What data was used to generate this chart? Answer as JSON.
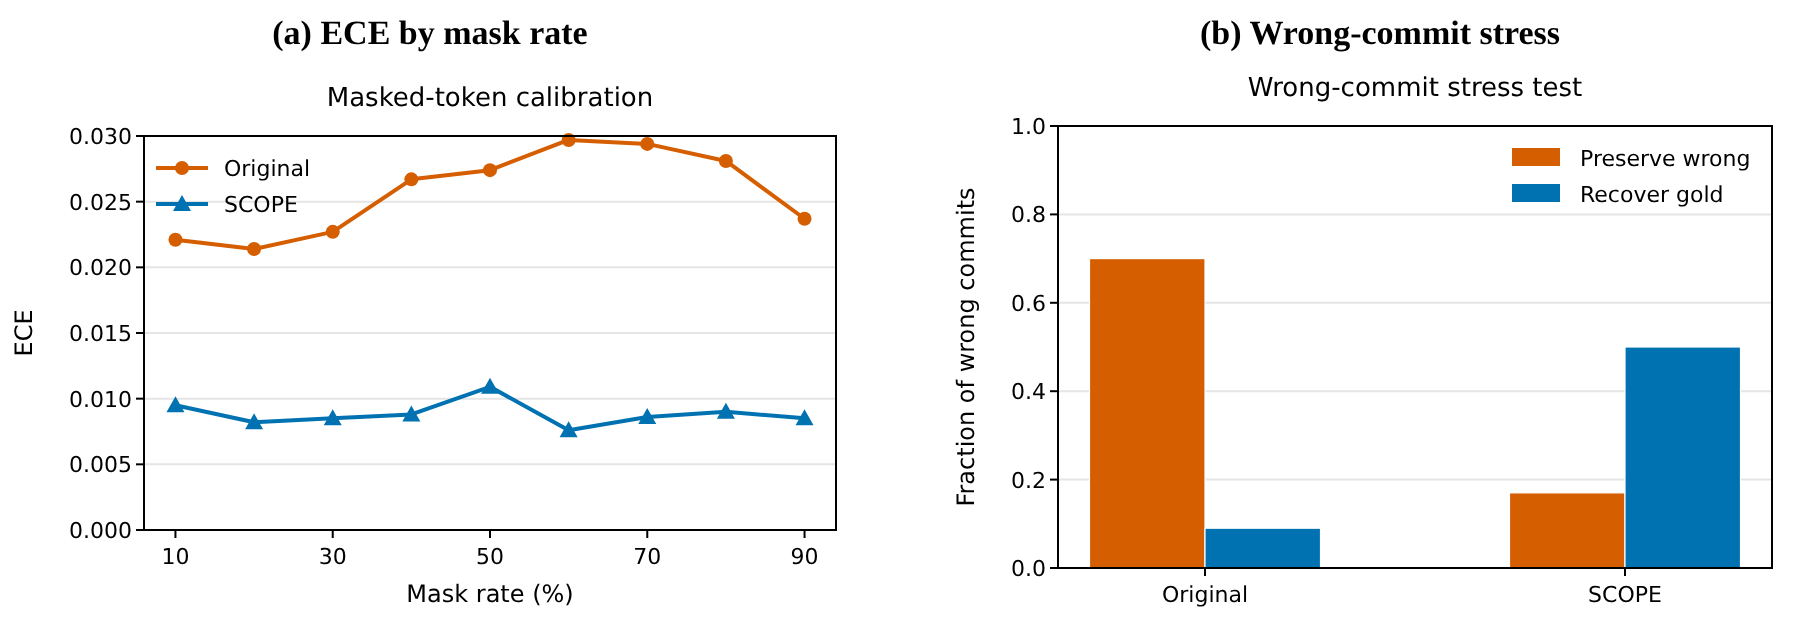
{
  "chart_data": [
    {
      "type": "line",
      "title": "(a) ECE by mask rate",
      "subtitle": "Masked-token calibration",
      "xlabel": "Mask rate (%)",
      "ylabel": "ECE",
      "x": [
        10,
        20,
        30,
        40,
        50,
        60,
        70,
        80,
        90
      ],
      "series": [
        {
          "name": "Original",
          "color": "#d55e00",
          "marker": "circle",
          "values": [
            0.0221,
            0.0214,
            0.0227,
            0.0267,
            0.0274,
            0.0297,
            0.0294,
            0.0281,
            0.0237
          ]
        },
        {
          "name": "SCOPE",
          "color": "#0072b2",
          "marker": "triangle",
          "values": [
            0.0095,
            0.0082,
            0.0085,
            0.0088,
            0.0109,
            0.0076,
            0.0086,
            0.009,
            0.0085
          ]
        }
      ],
      "xlim": [
        6,
        94
      ],
      "xticks": [
        10,
        30,
        50,
        70,
        90
      ],
      "ylim": [
        0,
        0.03
      ],
      "yticks": [
        {
          "value": 0,
          "label": "0.000"
        },
        {
          "value": 0.005,
          "label": "0.005"
        },
        {
          "value": 0.01,
          "label": "0.010"
        },
        {
          "value": 0.015,
          "label": "0.015"
        },
        {
          "value": 0.02,
          "label": "0.020"
        },
        {
          "value": 0.025,
          "label": "0.025"
        },
        {
          "value": 0.03,
          "label": "0.030"
        }
      ],
      "grid": "y",
      "legend": "top left",
      "line_style": "solid"
    },
    {
      "type": "bar",
      "title": "(b) Wrong-commit stress",
      "subtitle": "Wrong-commit stress test",
      "ylabel": "Fraction of wrong commits",
      "categories": [
        "Original",
        "SCOPE"
      ],
      "series": [
        {
          "name": "Preserve wrong",
          "color": "#d55e00",
          "values": [
            0.7,
            0.17
          ]
        },
        {
          "name": "Recover gold",
          "color": "#0072b2",
          "values": [
            0.09,
            0.5
          ]
        }
      ],
      "ylim": [
        0,
        1
      ],
      "yticks": [
        {
          "value": 0,
          "label": "0.0"
        },
        {
          "value": 0.2,
          "label": "0.2"
        },
        {
          "value": 0.4,
          "label": "0.4"
        },
        {
          "value": 0.6,
          "label": "0.6"
        },
        {
          "value": 0.8,
          "label": "0.8"
        },
        {
          "value": 1,
          "label": "1.0"
        }
      ],
      "grid": "y",
      "legend": "top right"
    }
  ]
}
